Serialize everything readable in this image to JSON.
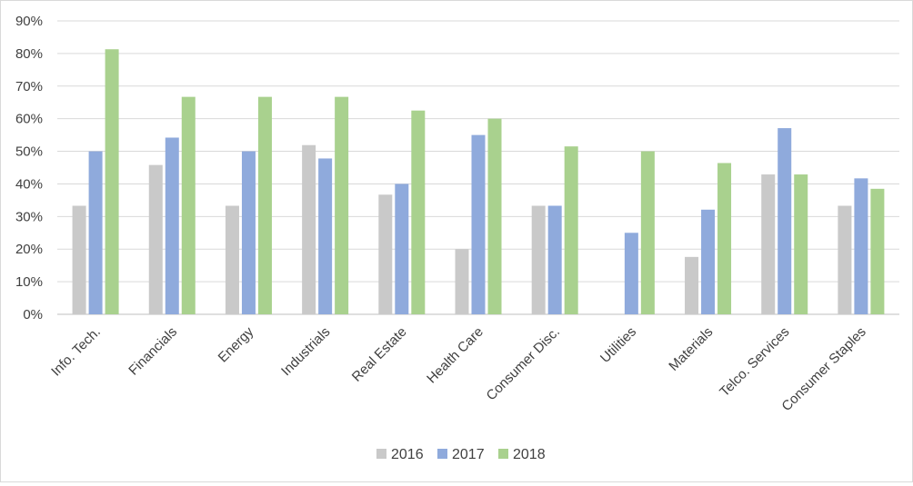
{
  "chart_data": {
    "type": "bar",
    "title": "",
    "xlabel": "",
    "ylabel": "",
    "ylim": [
      0,
      90
    ],
    "yticks": [
      "0%",
      "10%",
      "20%",
      "30%",
      "40%",
      "50%",
      "60%",
      "70%",
      "80%",
      "90%"
    ],
    "grid": true,
    "legend_position": "bottom",
    "categories": [
      "Info. Tech.",
      "Financials",
      "Energy",
      "Industrials",
      "Real Estate",
      "Health Care",
      "Consumer Disc.",
      "Utilities",
      "Materials",
      "Telco. Services",
      "Consumer Staples"
    ],
    "series": [
      {
        "name": "2016",
        "color": "#c9c9c9",
        "values": [
          33.3,
          45.8,
          33.3,
          51.9,
          36.7,
          20.0,
          33.3,
          0,
          17.6,
          42.9,
          33.3
        ]
      },
      {
        "name": "2017",
        "color": "#8faadc",
        "values": [
          50.0,
          54.2,
          50.0,
          47.8,
          40.0,
          55.0,
          33.3,
          25.0,
          32.1,
          57.1,
          41.7
        ]
      },
      {
        "name": "2018",
        "color": "#a9d18e",
        "values": [
          81.3,
          66.7,
          66.7,
          66.7,
          62.5,
          60.0,
          51.5,
          50.0,
          46.4,
          42.9,
          38.5
        ]
      }
    ]
  }
}
